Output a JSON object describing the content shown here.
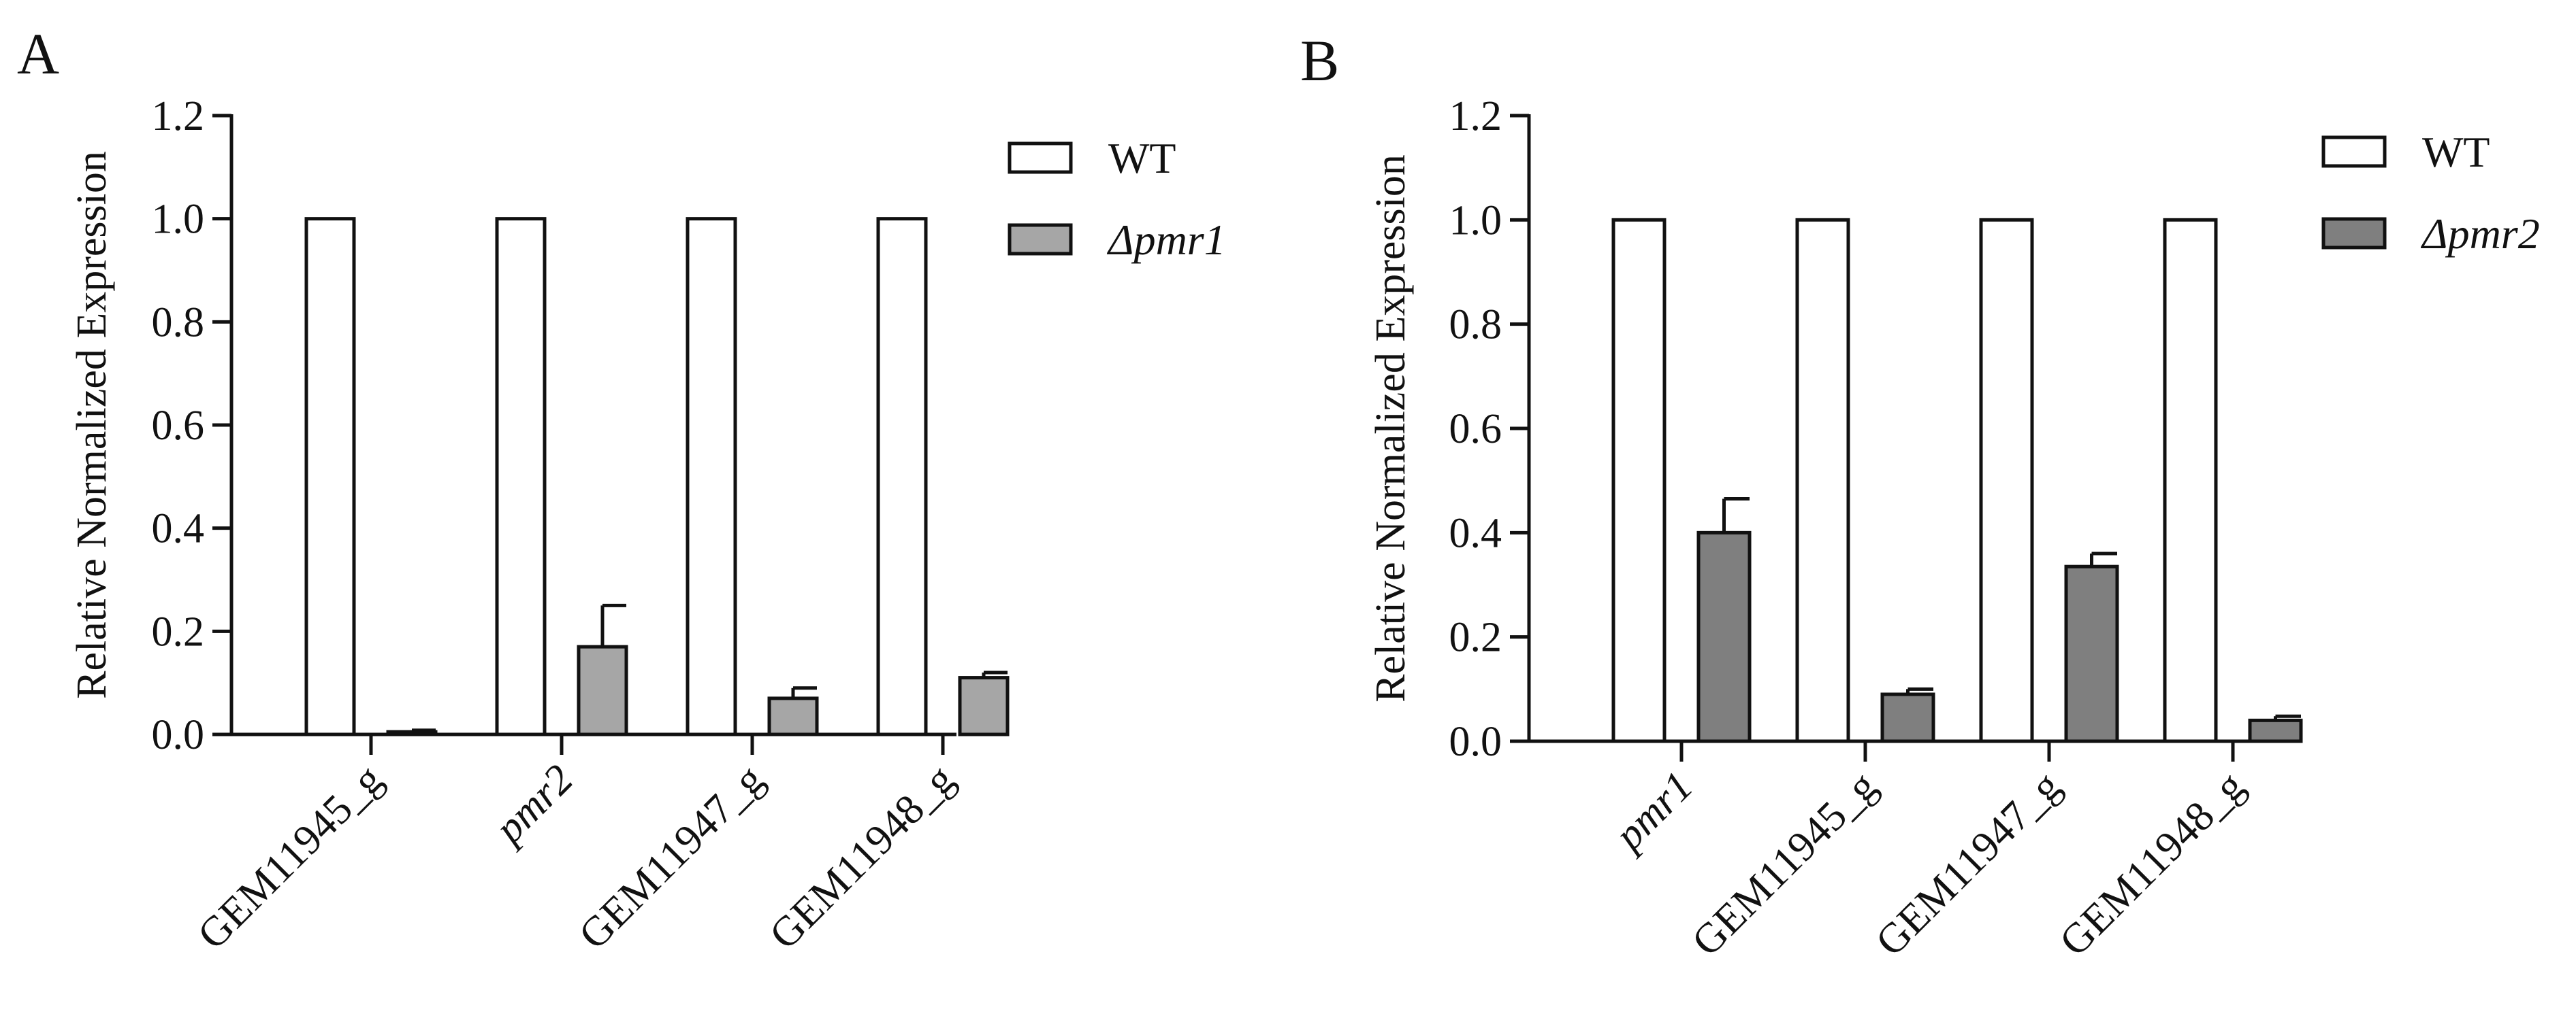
{
  "chart_data": [
    {
      "type": "bar",
      "panel": "A",
      "ylabel": "Relative Normalized Expression",
      "ylim": [
        0,
        1.2
      ],
      "yticks": [
        "0.0",
        "0.2",
        "0.4",
        "0.6",
        "0.8",
        "1.0",
        "1.2"
      ],
      "categories": [
        "GEM11945_g",
        "pmr2",
        "GEM11947_g",
        "GEM11948_g"
      ],
      "italic_categories": [
        "pmr2"
      ],
      "series": [
        {
          "name": "WT",
          "italic": false,
          "color": "#ffffff",
          "values": [
            1.0,
            1.0,
            1.0,
            1.0
          ],
          "errors": [
            0,
            0,
            0,
            0
          ]
        },
        {
          "name": "Δpmr1",
          "italic": true,
          "color": "#a6a6a6",
          "values": [
            0.005,
            0.17,
            0.07,
            0.11
          ],
          "errors": [
            0.003,
            0.08,
            0.02,
            0.01
          ]
        }
      ]
    },
    {
      "type": "bar",
      "panel": "B",
      "ylabel": "Relative Normalized Expression",
      "ylim": [
        0,
        1.2
      ],
      "yticks": [
        "0.0",
        "0.2",
        "0.4",
        "0.6",
        "0.8",
        "1.0",
        "1.2"
      ],
      "categories": [
        "pmr1",
        "GEM11945_g",
        "GEM11947_g",
        "GEM11948_g"
      ],
      "italic_categories": [
        "pmr1"
      ],
      "series": [
        {
          "name": "WT",
          "italic": false,
          "color": "#ffffff",
          "values": [
            1.0,
            1.0,
            1.0,
            1.0
          ],
          "errors": [
            0,
            0,
            0,
            0
          ]
        },
        {
          "name": "Δpmr2",
          "italic": true,
          "color": "#7f7f7f",
          "values": [
            0.4,
            0.09,
            0.335,
            0.04
          ],
          "errors": [
            0.065,
            0.01,
            0.025,
            0.008
          ]
        }
      ]
    }
  ]
}
